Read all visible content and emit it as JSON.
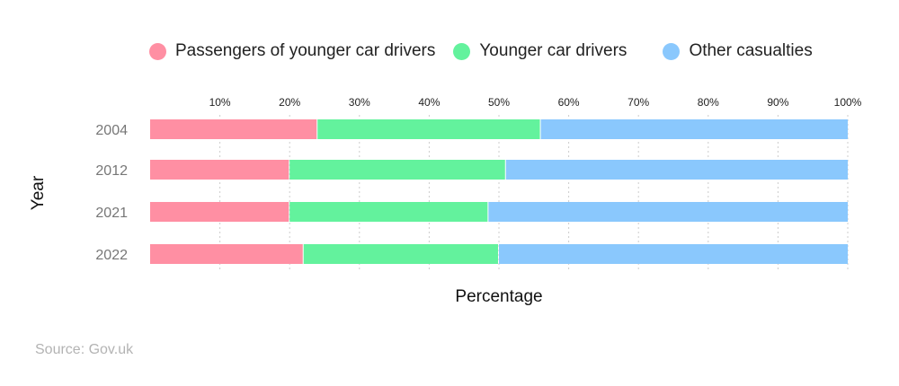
{
  "chart_data": {
    "type": "bar",
    "orientation": "horizontal",
    "stacked": true,
    "categories": [
      "2004",
      "2012",
      "2021",
      "2022"
    ],
    "series": [
      {
        "name": "Passengers of younger car drivers",
        "color": "#ff8fa3",
        "values": [
          24,
          20,
          20,
          22
        ]
      },
      {
        "name": "Younger car drivers",
        "color": "#63f29d",
        "values": [
          32,
          31,
          28.5,
          28
        ]
      },
      {
        "name": "Other casualties",
        "color": "#8ac8fd",
        "values": [
          44,
          49,
          51.5,
          50
        ]
      }
    ],
    "xlabel": "Percentage",
    "ylabel": "Year",
    "xlim": [
      0,
      100
    ],
    "xticks": [
      "10%",
      "20%",
      "30%",
      "40%",
      "50%",
      "60%",
      "70%",
      "80%",
      "90%",
      "100%"
    ],
    "grid": "vertical dotted",
    "legend": "top"
  },
  "source": "Source: Gov.uk"
}
